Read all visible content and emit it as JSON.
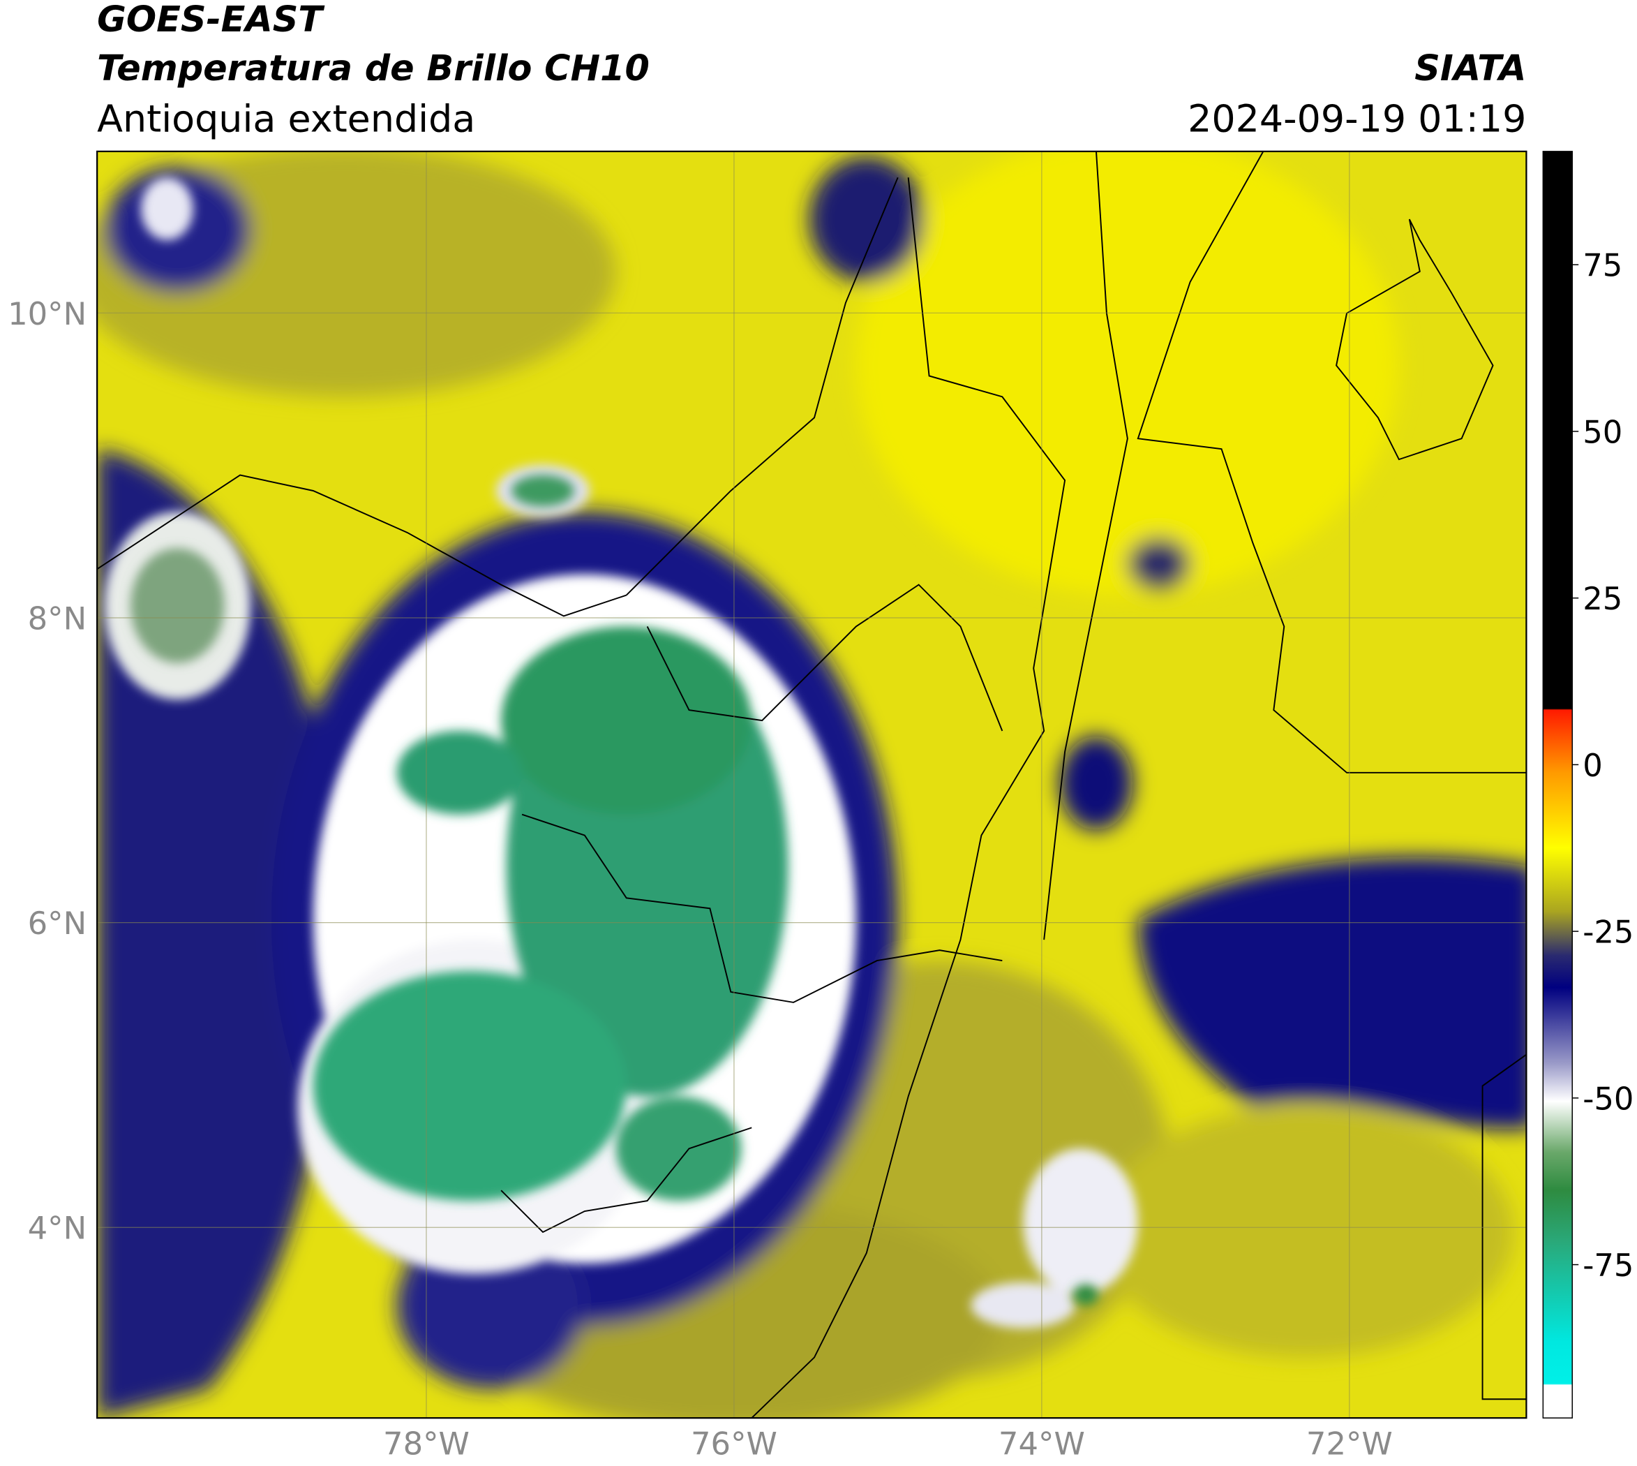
{
  "header": {
    "satellite": "GOES-EAST",
    "product": "Temperatura de Brillo CH10",
    "region": "Antioquia extendida",
    "source": "SIATA",
    "datetime": "2024-09-19 01:19"
  },
  "map": {
    "lonlim": [
      -80.14,
      -70.85
    ],
    "latlim": [
      2.75,
      11.06
    ],
    "lonticks": [
      {
        "value": -78,
        "label": "78°W"
      },
      {
        "value": -76,
        "label": "76°W"
      },
      {
        "value": -74,
        "label": "74°W"
      },
      {
        "value": -72,
        "label": "72°W"
      }
    ],
    "latticks": [
      {
        "value": 4,
        "label": "4°N"
      },
      {
        "value": 6,
        "label": "6°N"
      },
      {
        "value": 8,
        "label": "8°N"
      },
      {
        "value": 10,
        "label": "10°N"
      }
    ],
    "grid": true
  },
  "colorbar": {
    "clim": [
      -98,
      92
    ],
    "ticks": [
      -75,
      -50,
      -25,
      0,
      25,
      50,
      75
    ]
  }
}
